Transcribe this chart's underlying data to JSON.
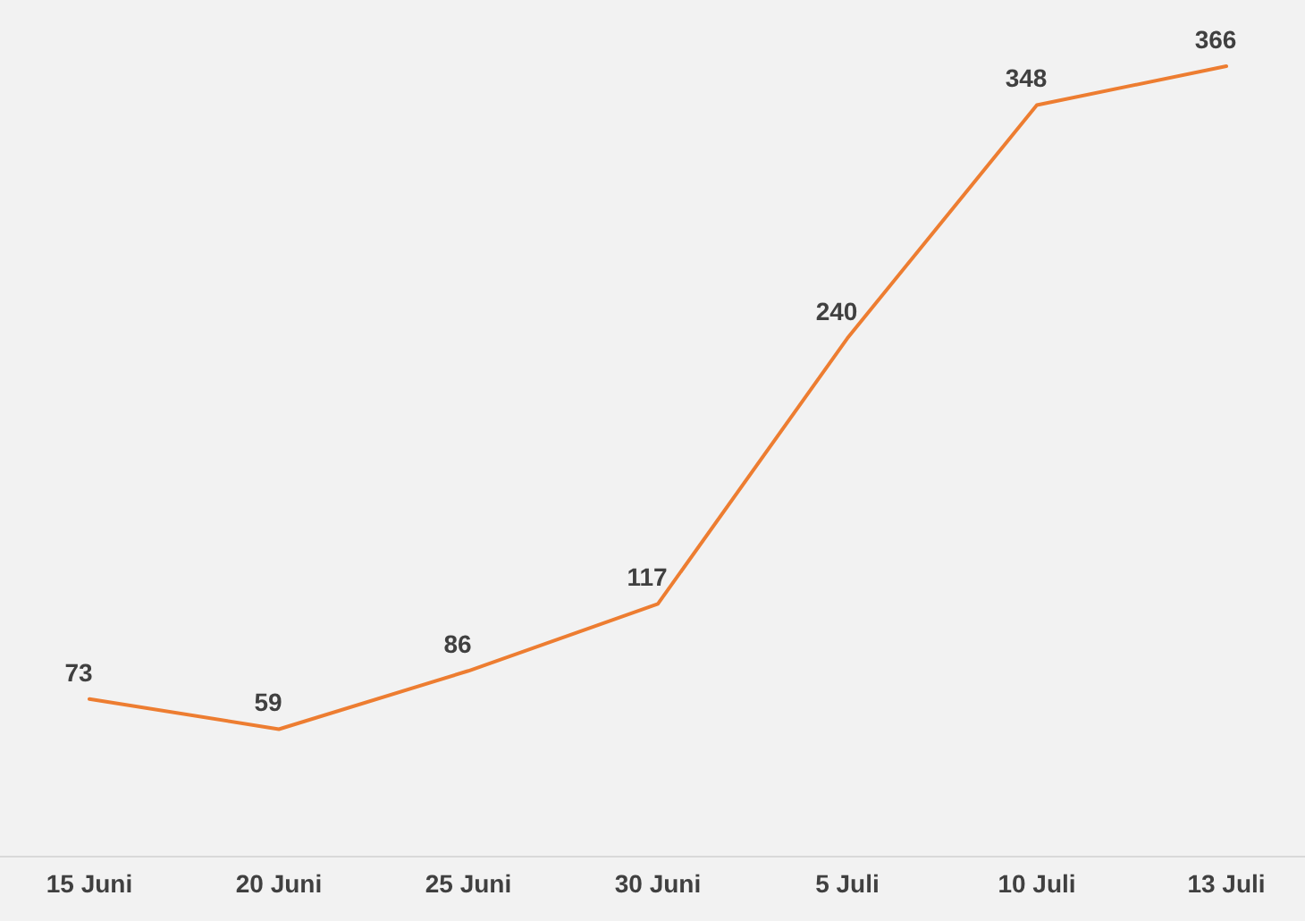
{
  "chart_data": {
    "type": "line",
    "categories": [
      "15 Juni",
      "20 Juni",
      "25 Juni",
      "30 Juni",
      "5 Juli",
      "10 Juli",
      "13 Juli"
    ],
    "series": [
      {
        "color": "#ed7d31",
        "values": [
          73,
          59,
          86,
          117,
          240,
          348,
          366
        ]
      }
    ],
    "data_labels": true,
    "marker": "none",
    "line_style": "solid"
  }
}
